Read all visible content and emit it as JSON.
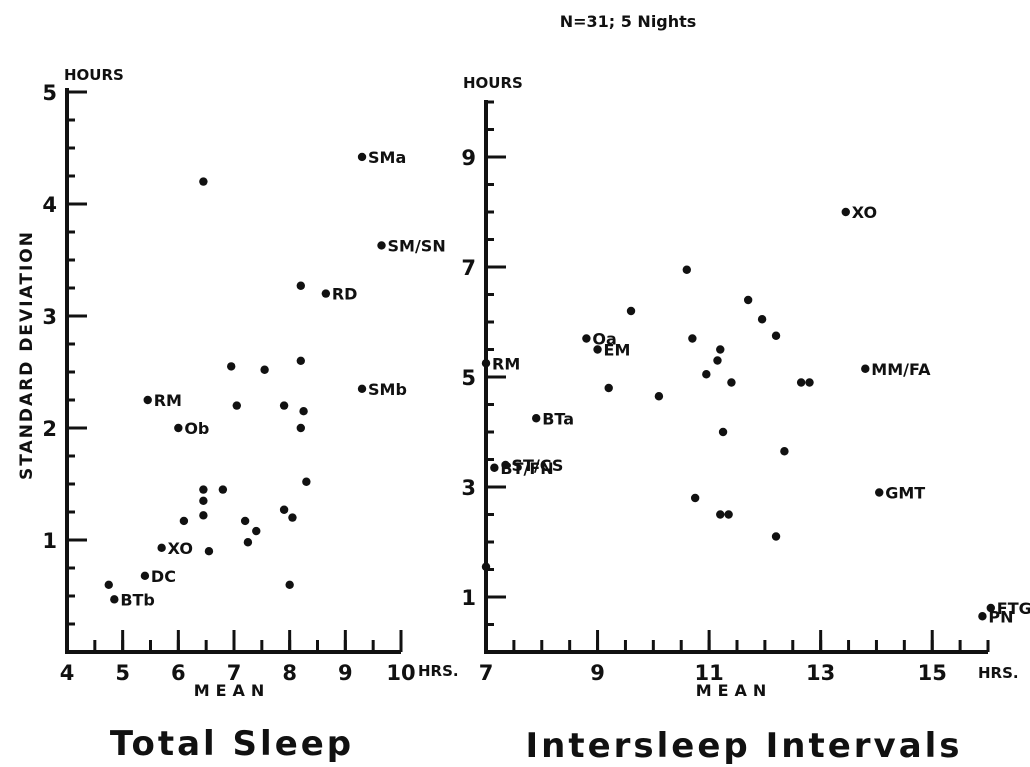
{
  "header": {
    "sample_note": "N=31; 5 Nights"
  },
  "y_axis_shared_label": "STANDARD    DEVIATION",
  "chart_data": [
    {
      "type": "scatter",
      "title": "Total Sleep",
      "xlabel": "MEAN",
      "ylabel": "HOURS",
      "x_unit_label": "HRS.",
      "xlim": [
        4,
        10
      ],
      "ylim": [
        0,
        5
      ],
      "x_ticks": [
        4,
        5,
        6,
        7,
        8,
        9,
        10
      ],
      "x_tick_labels": [
        "4",
        "5",
        "6",
        "7",
        "8",
        "9",
        "10"
      ],
      "y_ticks": [
        1,
        2,
        3,
        4,
        5
      ],
      "y_tick_labels": [
        "1",
        "2",
        "3",
        "4",
        "5"
      ],
      "points": [
        {
          "x": 4.75,
          "y": 0.6,
          "label": ""
        },
        {
          "x": 5.4,
          "y": 0.68,
          "label": "DC"
        },
        {
          "x": 5.7,
          "y": 0.93,
          "label": "XO"
        },
        {
          "x": 5.45,
          "y": 2.25,
          "label": "RM"
        },
        {
          "x": 6.0,
          "y": 2.0,
          "label": "Ob"
        },
        {
          "x": 6.1,
          "y": 1.17,
          "label": ""
        },
        {
          "x": 6.45,
          "y": 1.22,
          "label": ""
        },
        {
          "x": 6.45,
          "y": 1.35,
          "label": ""
        },
        {
          "x": 6.45,
          "y": 1.45,
          "label": ""
        },
        {
          "x": 6.55,
          "y": 0.9,
          "label": ""
        },
        {
          "x": 6.8,
          "y": 1.45,
          "label": ""
        },
        {
          "x": 6.45,
          "y": 4.2,
          "label": ""
        },
        {
          "x": 6.95,
          "y": 2.55,
          "label": ""
        },
        {
          "x": 7.05,
          "y": 2.2,
          "label": ""
        },
        {
          "x": 7.2,
          "y": 1.17,
          "label": ""
        },
        {
          "x": 7.25,
          "y": 0.98,
          "label": ""
        },
        {
          "x": 7.4,
          "y": 1.08,
          "label": ""
        },
        {
          "x": 7.55,
          "y": 2.52,
          "label": ""
        },
        {
          "x": 7.9,
          "y": 2.2,
          "label": ""
        },
        {
          "x": 7.9,
          "y": 1.27,
          "label": ""
        },
        {
          "x": 8.05,
          "y": 1.2,
          "label": ""
        },
        {
          "x": 8.0,
          "y": 0.6,
          "label": ""
        },
        {
          "x": 8.2,
          "y": 2.6,
          "label": ""
        },
        {
          "x": 8.2,
          "y": 2.0,
          "label": ""
        },
        {
          "x": 8.25,
          "y": 2.15,
          "label": ""
        },
        {
          "x": 8.3,
          "y": 1.52,
          "label": ""
        },
        {
          "x": 8.2,
          "y": 3.27,
          "label": ""
        },
        {
          "x": 8.65,
          "y": 3.2,
          "label": "RD"
        },
        {
          "x": 9.3,
          "y": 2.35,
          "label": "SMb"
        },
        {
          "x": 9.3,
          "y": 4.42,
          "label": "SMa"
        },
        {
          "x": 9.65,
          "y": 3.63,
          "label": "SM/SN"
        },
        {
          "x": 4.85,
          "y": 0.47,
          "label": "BTb"
        }
      ]
    },
    {
      "type": "scatter",
      "title": "Intersleep Intervals",
      "xlabel": "MEAN",
      "ylabel": "HOURS",
      "x_unit_label": "HRS.",
      "xlim": [
        7,
        16
      ],
      "ylim": [
        0,
        10
      ],
      "x_ticks": [
        7,
        9,
        11,
        13,
        15
      ],
      "x_tick_labels": [
        "7",
        "9",
        "11",
        "13",
        "15"
      ],
      "y_ticks": [
        1,
        3,
        5,
        7,
        9
      ],
      "y_tick_labels": [
        "1",
        "3",
        "5",
        "7",
        "9"
      ],
      "points": [
        {
          "x": 7.0,
          "y": 5.25,
          "label": "RM"
        },
        {
          "x": 7.0,
          "y": 1.55,
          "label": ""
        },
        {
          "x": 7.15,
          "y": 3.35,
          "label": "BT/FN"
        },
        {
          "x": 7.35,
          "y": 3.4,
          "label": "ST/CS"
        },
        {
          "x": 7.9,
          "y": 4.25,
          "label": "BTa"
        },
        {
          "x": 8.8,
          "y": 5.7,
          "label": "Oa"
        },
        {
          "x": 9.0,
          "y": 5.5,
          "label": "EM"
        },
        {
          "x": 9.2,
          "y": 4.8,
          "label": ""
        },
        {
          "x": 9.6,
          "y": 6.2,
          "label": ""
        },
        {
          "x": 10.1,
          "y": 4.65,
          "label": ""
        },
        {
          "x": 10.6,
          "y": 6.95,
          "label": ""
        },
        {
          "x": 10.7,
          "y": 5.7,
          "label": ""
        },
        {
          "x": 10.75,
          "y": 2.8,
          "label": ""
        },
        {
          "x": 10.95,
          "y": 5.05,
          "label": ""
        },
        {
          "x": 11.15,
          "y": 5.3,
          "label": ""
        },
        {
          "x": 11.2,
          "y": 5.5,
          "label": ""
        },
        {
          "x": 11.25,
          "y": 4.0,
          "label": ""
        },
        {
          "x": 11.2,
          "y": 2.5,
          "label": ""
        },
        {
          "x": 11.35,
          "y": 2.5,
          "label": ""
        },
        {
          "x": 11.4,
          "y": 4.9,
          "label": ""
        },
        {
          "x": 11.7,
          "y": 6.4,
          "label": ""
        },
        {
          "x": 11.95,
          "y": 6.05,
          "label": ""
        },
        {
          "x": 12.2,
          "y": 5.75,
          "label": ""
        },
        {
          "x": 12.2,
          "y": 2.1,
          "label": ""
        },
        {
          "x": 12.35,
          "y": 3.65,
          "label": ""
        },
        {
          "x": 12.65,
          "y": 4.9,
          "label": ""
        },
        {
          "x": 12.8,
          "y": 4.9,
          "label": ""
        },
        {
          "x": 13.45,
          "y": 8.0,
          "label": "XO"
        },
        {
          "x": 13.8,
          "y": 5.15,
          "label": "MM/FA"
        },
        {
          "x": 14.05,
          "y": 2.9,
          "label": "GMT"
        },
        {
          "x": 15.9,
          "y": 0.65,
          "label": "PN"
        },
        {
          "x": 16.05,
          "y": 0.8,
          "label": "FTG"
        }
      ]
    }
  ]
}
